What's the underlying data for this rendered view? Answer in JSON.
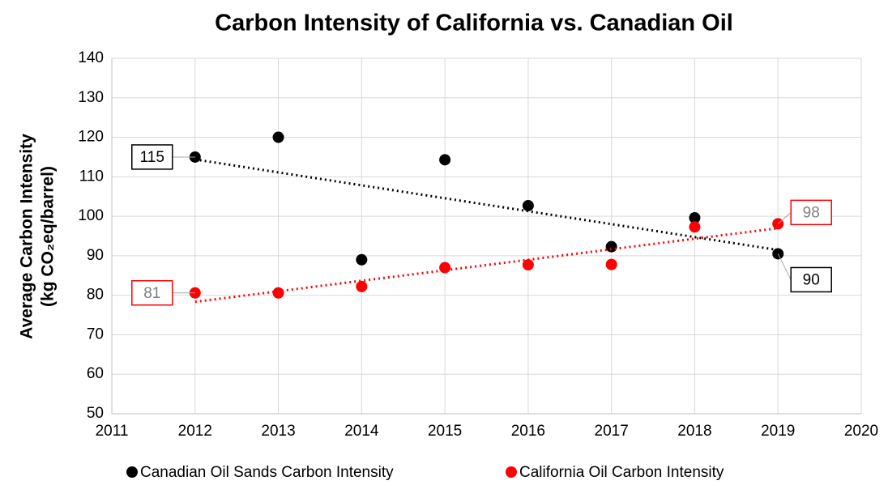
{
  "chart_data": {
    "type": "scatter",
    "title": "Carbon Intensity of California vs. Canadian Oil",
    "y_label": [
      "Average Carbon Intensity",
      "(kg CO₂eq/barrel)"
    ],
    "x": [
      2012,
      2013,
      2014,
      2015,
      2016,
      2017,
      2018,
      2019
    ],
    "series": [
      {
        "name": "Canadian Oil Sands Carbon Intensity",
        "color": "#000000",
        "values": [
          115,
          120,
          89,
          114.3,
          102.7,
          92.3,
          99.6,
          90.5
        ],
        "value_labels": [
          "115",
          null,
          null,
          null,
          null,
          null,
          null,
          "90"
        ],
        "trendline": true
      },
      {
        "name": "California Oil Carbon Intensity",
        "color": "#ff0000",
        "values": [
          80.6,
          80.6,
          82.2,
          87,
          87.7,
          87.8,
          97.3,
          98.1
        ],
        "value_labels": [
          "81",
          null,
          null,
          null,
          null,
          null,
          null,
          "98"
        ],
        "trendline": true
      }
    ],
    "xlim": [
      2011,
      2020
    ],
    "xticks": [
      2011,
      2012,
      2013,
      2014,
      2015,
      2016,
      2017,
      2018,
      2019,
      2020
    ],
    "ylim": [
      50,
      140
    ],
    "yticks": [
      50,
      60,
      70,
      80,
      90,
      100,
      110,
      120,
      130,
      140
    ],
    "grid": true,
    "legend": "bottom"
  }
}
